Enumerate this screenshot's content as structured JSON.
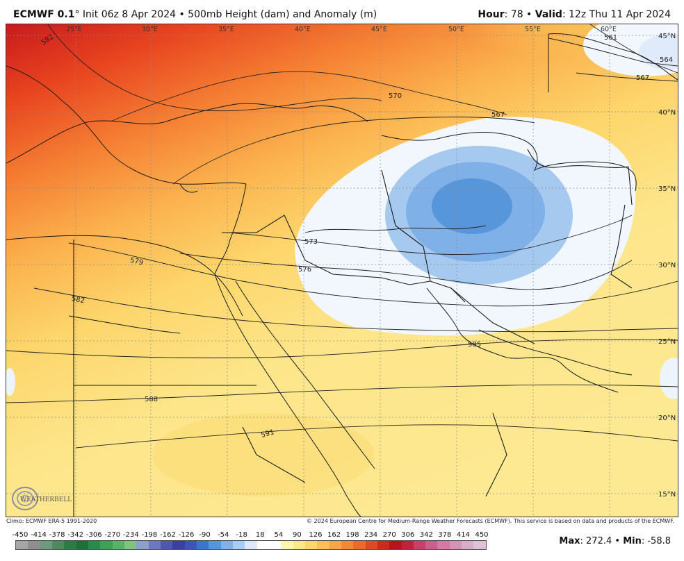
{
  "header": {
    "model": "ECMWF 0.1",
    "degree": "°",
    "init": " Init 06z 8 Apr 2024 • 500mb Height (dam) and Anomaly (m)",
    "hour_label": "Hour",
    "hour_value": ": 78 • ",
    "valid_label": "Valid",
    "valid_value": ": 12z Thu 11 Apr 2024"
  },
  "map": {
    "longitude_labels": [
      "25°E",
      "30°E",
      "35°E",
      "40°E",
      "45°E",
      "50°E",
      "55°E",
      "60°E"
    ],
    "latitude_labels": [
      "45°N",
      "40°N",
      "35°N",
      "30°N",
      "25°N",
      "20°N",
      "15°N"
    ],
    "contour_labels": [
      "582",
      "570",
      "567",
      "561",
      "564",
      "567",
      "573",
      "576",
      "579",
      "582",
      "585",
      "588",
      "591"
    ]
  },
  "footer": {
    "climo": "Climo: ECMWF ERA-5 1991-2020",
    "copyright": "© 2024 European Centre for Medium-Range Weather Forecasts (ECMWF). This service is based on data and products of the ECMWF."
  },
  "colorbar": {
    "ticks": [
      "-450",
      "-414",
      "-378",
      "-342",
      "-306",
      "-270",
      "-234",
      "-198",
      "-162",
      "-126",
      "-90",
      "-54",
      "-18",
      "18",
      "54",
      "90",
      "126",
      "162",
      "198",
      "234",
      "270",
      "306",
      "342",
      "378",
      "414",
      "450"
    ],
    "colors": [
      "#a6a6a6",
      "#8f8f8f",
      "#6f9a80",
      "#4f8a5e",
      "#2e7a48",
      "#1f6e3c",
      "#2a8a4a",
      "#3fa058",
      "#5ab16a",
      "#7fc47e",
      "#8fa0c8",
      "#6e78c0",
      "#4f57b0",
      "#3a3fa0",
      "#3b55b8",
      "#3d74cc",
      "#5596dc",
      "#7fb2e6",
      "#a8cdf0",
      "#dbe9fa",
      "#ffffff",
      "#ffffff",
      "#fff6b0",
      "#fde98a",
      "#fcd66c",
      "#fbbf55",
      "#f9a544",
      "#f48838",
      "#ec6a2c",
      "#e04a22",
      "#cc2a1e",
      "#b8141c",
      "#c2203e",
      "#c8406a",
      "#cc5e8a",
      "#d07aa4",
      "#d494b8",
      "#d8adc8",
      "#dcc2d6"
    ],
    "max_label": "Max",
    "max_value": ": 272.4 • ",
    "min_label": "Min",
    "min_value": ": -58.8"
  },
  "logo": {
    "text": "WEATHERBELL",
    "icon": "weatherbell-swirl-logo"
  }
}
